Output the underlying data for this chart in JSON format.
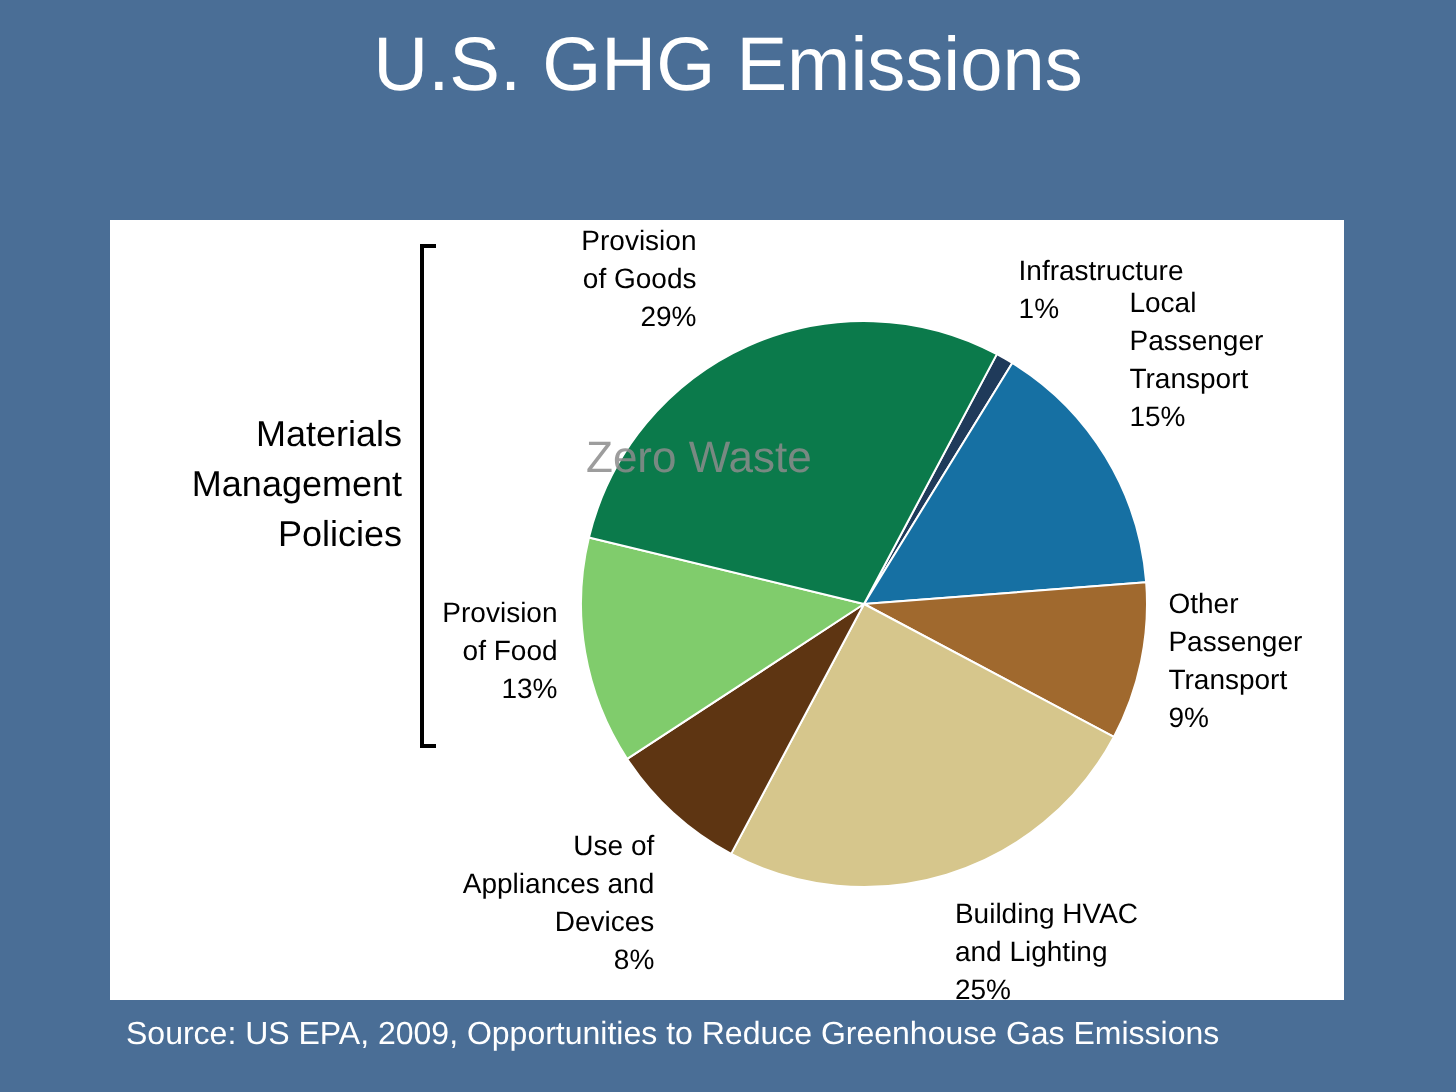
{
  "chart_data": {
    "type": "pie",
    "title": "U.S. GHG Emissions",
    "categories": [
      "Infrastructure",
      "Local Passenger Transport",
      "Other Passenger Transport",
      "Building HVAC and Lighting",
      "Use of Appliances and Devices",
      "Provision of Food",
      "Provision of Goods"
    ],
    "values": [
      1,
      15,
      9,
      25,
      8,
      13,
      29
    ],
    "value_labels": [
      "1%",
      "15%",
      "9%",
      "25%",
      "8%",
      "13%",
      "29%"
    ],
    "colors": [
      "#1f3a5a",
      "#1670a3",
      "#a0692e",
      "#d6c68c",
      "#5e3512",
      "#80cc6c",
      "#0b7a4b"
    ],
    "legend": false,
    "annotations": [
      "Materials Management Policies",
      "Zero Waste",
      "Source: US EPA, 2009, Opportunities to Reduce Greenhouse Gas Emissions"
    ]
  }
}
